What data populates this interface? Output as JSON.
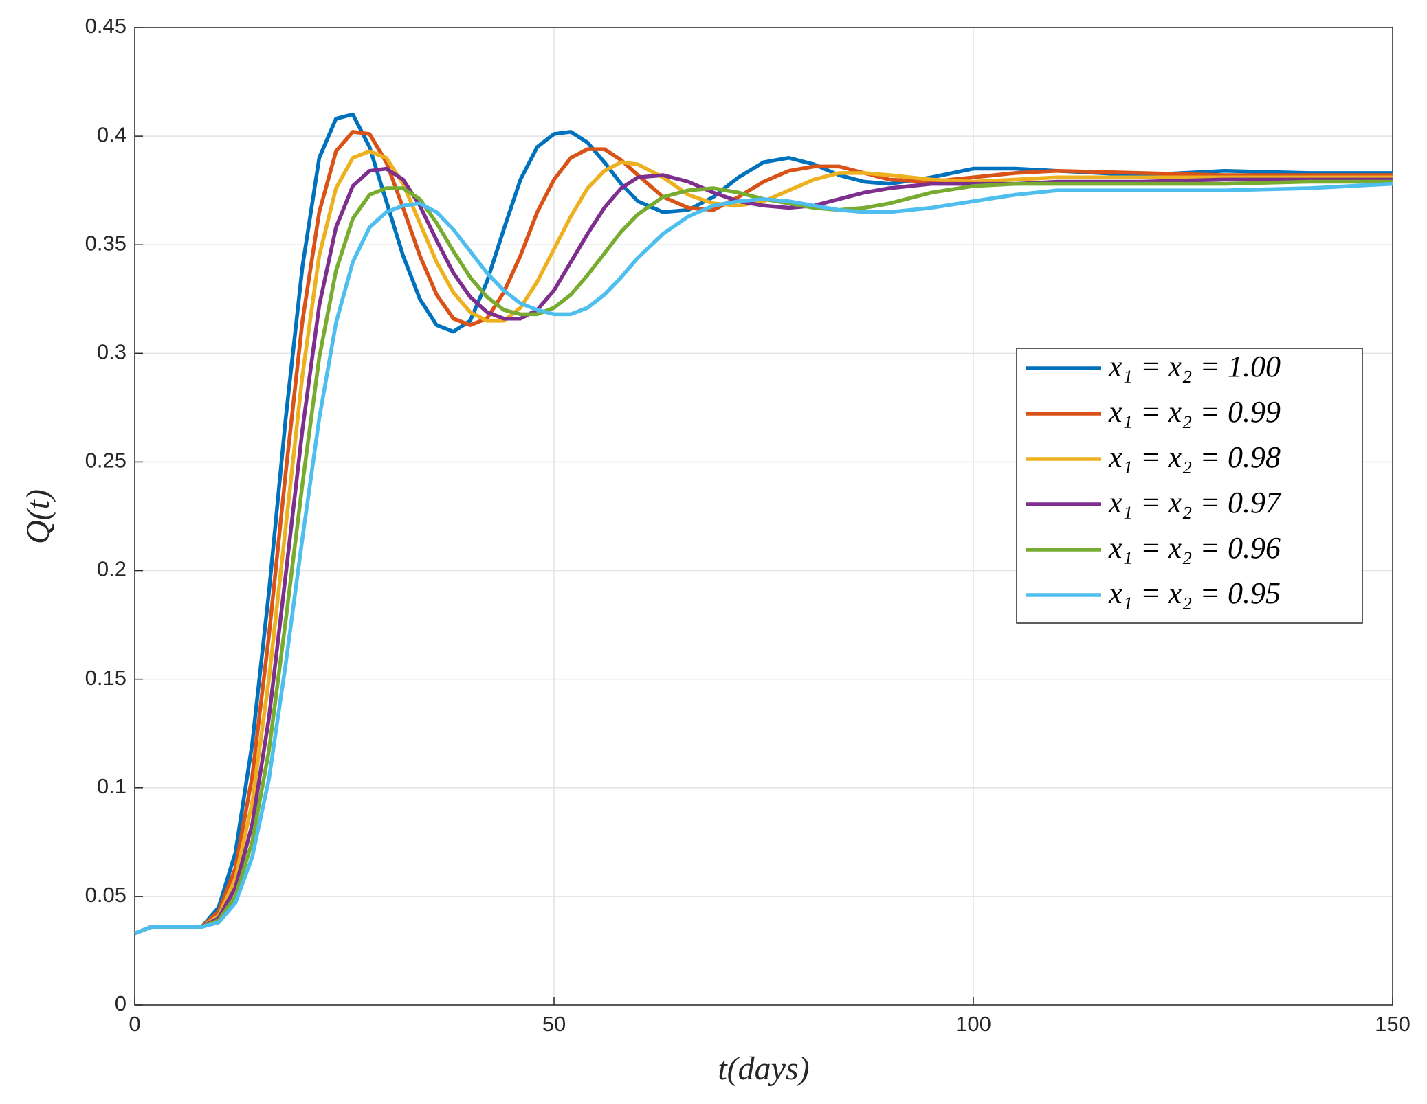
{
  "chart_data": {
    "type": "line",
    "x_label": "t(days)",
    "y_label": "Q(t)",
    "x": [
      0,
      2,
      4,
      6,
      8,
      10,
      12,
      14,
      16,
      18,
      20,
      22,
      24,
      26,
      28,
      30,
      32,
      34,
      36,
      38,
      40,
      42,
      44,
      46,
      48,
      50,
      52,
      54,
      56,
      58,
      60,
      63,
      66,
      69,
      72,
      75,
      78,
      81,
      84,
      87,
      90,
      95,
      100,
      105,
      110,
      120,
      130,
      140,
      150
    ],
    "series": [
      {
        "name": "x₁ = x₂ = 1.00",
        "color": "#0072BD",
        "values": [
          0.033,
          0.036,
          0.036,
          0.036,
          0.036,
          0.045,
          0.07,
          0.12,
          0.19,
          0.27,
          0.34,
          0.39,
          0.408,
          0.41,
          0.395,
          0.37,
          0.345,
          0.325,
          0.313,
          0.31,
          0.315,
          0.333,
          0.357,
          0.38,
          0.395,
          0.401,
          0.402,
          0.397,
          0.388,
          0.378,
          0.37,
          0.365,
          0.366,
          0.372,
          0.381,
          0.388,
          0.39,
          0.387,
          0.382,
          0.379,
          0.378,
          0.381,
          0.385,
          0.385,
          0.384,
          0.382,
          0.384,
          0.383,
          0.383
        ]
      },
      {
        "name": "x₁ = x₂ = 0.99",
        "color": "#D95319",
        "values": [
          0.033,
          0.036,
          0.036,
          0.036,
          0.036,
          0.043,
          0.063,
          0.105,
          0.17,
          0.245,
          0.315,
          0.365,
          0.393,
          0.402,
          0.401,
          0.388,
          0.367,
          0.345,
          0.327,
          0.316,
          0.313,
          0.316,
          0.328,
          0.345,
          0.365,
          0.38,
          0.39,
          0.394,
          0.394,
          0.389,
          0.382,
          0.372,
          0.367,
          0.366,
          0.372,
          0.379,
          0.384,
          0.386,
          0.386,
          0.383,
          0.38,
          0.379,
          0.381,
          0.383,
          0.384,
          0.383,
          0.382,
          0.382,
          0.382
        ]
      },
      {
        "name": "x₁ = x₂ = 0.98",
        "color": "#EDB120",
        "values": [
          0.033,
          0.036,
          0.036,
          0.036,
          0.036,
          0.041,
          0.058,
          0.093,
          0.15,
          0.22,
          0.29,
          0.345,
          0.376,
          0.39,
          0.393,
          0.39,
          0.378,
          0.36,
          0.342,
          0.328,
          0.319,
          0.315,
          0.315,
          0.321,
          0.333,
          0.348,
          0.363,
          0.376,
          0.384,
          0.388,
          0.387,
          0.381,
          0.373,
          0.369,
          0.368,
          0.37,
          0.375,
          0.38,
          0.383,
          0.383,
          0.382,
          0.38,
          0.379,
          0.38,
          0.381,
          0.381,
          0.381,
          0.381,
          0.381
        ]
      },
      {
        "name": "x₁ = x₂ = 0.97",
        "color": "#7E2F8E",
        "values": [
          0.033,
          0.036,
          0.036,
          0.036,
          0.036,
          0.04,
          0.054,
          0.083,
          0.132,
          0.198,
          0.265,
          0.322,
          0.358,
          0.377,
          0.384,
          0.385,
          0.38,
          0.368,
          0.352,
          0.337,
          0.326,
          0.319,
          0.316,
          0.316,
          0.32,
          0.329,
          0.342,
          0.355,
          0.367,
          0.376,
          0.381,
          0.382,
          0.379,
          0.374,
          0.37,
          0.368,
          0.367,
          0.368,
          0.371,
          0.374,
          0.376,
          0.378,
          0.378,
          0.378,
          0.379,
          0.379,
          0.38,
          0.38,
          0.38
        ]
      },
      {
        "name": "x₁ = x₂ = 0.96",
        "color": "#77AC30",
        "values": [
          0.033,
          0.036,
          0.036,
          0.036,
          0.036,
          0.039,
          0.05,
          0.075,
          0.117,
          0.177,
          0.24,
          0.298,
          0.338,
          0.362,
          0.373,
          0.376,
          0.376,
          0.371,
          0.36,
          0.347,
          0.335,
          0.326,
          0.32,
          0.318,
          0.318,
          0.321,
          0.327,
          0.336,
          0.346,
          0.356,
          0.364,
          0.372,
          0.375,
          0.376,
          0.374,
          0.371,
          0.369,
          0.367,
          0.366,
          0.367,
          0.369,
          0.374,
          0.377,
          0.378,
          0.378,
          0.378,
          0.378,
          0.379,
          0.379
        ]
      },
      {
        "name": "x₁ = x₂ = 0.95",
        "color": "#4DBEEE",
        "values": [
          0.033,
          0.036,
          0.036,
          0.036,
          0.036,
          0.038,
          0.047,
          0.068,
          0.104,
          0.157,
          0.215,
          0.27,
          0.314,
          0.342,
          0.358,
          0.365,
          0.368,
          0.369,
          0.365,
          0.357,
          0.347,
          0.337,
          0.329,
          0.323,
          0.32,
          0.318,
          0.318,
          0.321,
          0.327,
          0.335,
          0.344,
          0.355,
          0.363,
          0.368,
          0.37,
          0.371,
          0.37,
          0.368,
          0.366,
          0.365,
          0.365,
          0.367,
          0.37,
          0.373,
          0.375,
          0.375,
          0.375,
          0.376,
          0.378
        ]
      }
    ],
    "xlim": [
      0,
      150
    ],
    "xticks": [
      0,
      50,
      100,
      150
    ],
    "ylim": [
      0,
      0.45
    ],
    "yticks": [
      0,
      0.05,
      0.1,
      0.15,
      0.2,
      0.25,
      0.3,
      0.35,
      0.4,
      0.45
    ],
    "grid": true,
    "legend": "right"
  }
}
